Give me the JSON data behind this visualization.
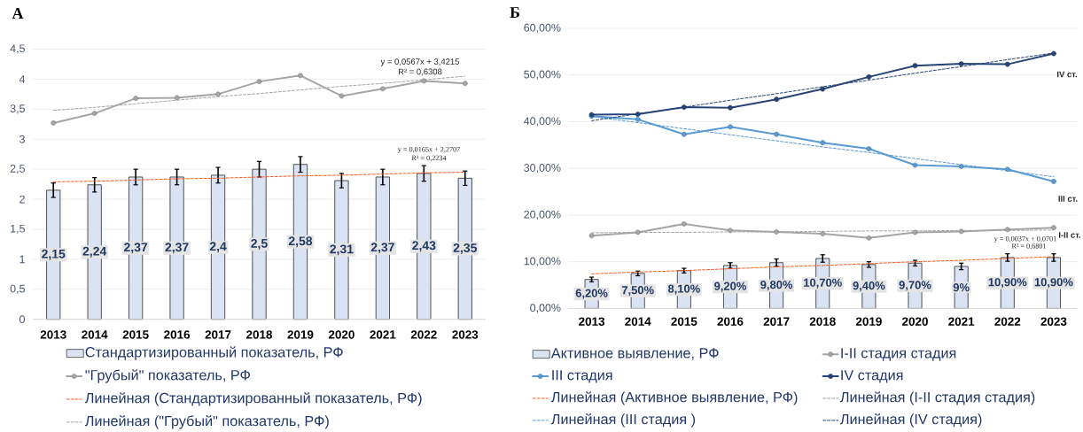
{
  "chart_data": [
    {
      "type": "bar",
      "title": "А",
      "x": [
        2013,
        2014,
        2015,
        2016,
        2017,
        2018,
        2019,
        2020,
        2021,
        2022,
        2023
      ],
      "xlim": [
        2012.5,
        2023.5
      ],
      "xticks": [
        2013,
        2014,
        2015,
        2016,
        2017,
        2018,
        2019,
        2020,
        2021,
        2022,
        2023
      ],
      "ylim": [
        0,
        4.5
      ],
      "yticks": [
        0,
        {
          "value": 0.5,
          "label": "0,5"
        },
        1,
        {
          "value": 1.5,
          "label": "1,5"
        },
        2,
        {
          "value": 2.5,
          "label": "2,5"
        },
        3,
        {
          "value": 3.5,
          "label": "3,5"
        },
        4,
        {
          "value": 4.5,
          "label": "4,5"
        }
      ],
      "grid": "y",
      "legend": "bottom",
      "series": [
        {
          "name": "Стандартизированный показатель, РФ",
          "color": "#dae3f3",
          "values": [
            2.15,
            2.24,
            2.37,
            2.37,
            2.4,
            2.5,
            2.58,
            2.31,
            2.37,
            2.43,
            2.35
          ],
          "errors": [
            0.12,
            0.12,
            0.13,
            0.13,
            0.13,
            0.13,
            0.13,
            0.12,
            0.13,
            0.13,
            0.12
          ],
          "value_labels": [
            "2,15",
            "2,24",
            "2,37",
            "2,37",
            "2,4",
            "2,5",
            "2,58",
            "2,31",
            "2,37",
            "2,43",
            "2,35"
          ]
        },
        {
          "name": "\"Грубый\" показатель, РФ",
          "type": "line",
          "color": "#a5a5a5",
          "marker": "circle",
          "line_style": "solid",
          "values": [
            3.27,
            3.43,
            3.68,
            3.69,
            3.75,
            3.96,
            4.06,
            3.72,
            3.84,
            3.97,
            3.93
          ]
        },
        {
          "name": "Линейная (Стандартизированный показатель, РФ)",
          "type": "line",
          "color": "#ff5b1f",
          "marker": "none",
          "line_style": "dashed",
          "values": [
            2.29,
            2.3,
            2.32,
            2.34,
            2.35,
            2.37,
            2.39,
            2.4,
            2.42,
            2.44,
            2.45
          ]
        },
        {
          "name": "Линейная (\"Грубый\" показатель, РФ)",
          "type": "line",
          "color": "#a5a5a5",
          "marker": "none",
          "line_style": "dashed",
          "values": [
            3.48,
            3.53,
            3.59,
            3.65,
            3.71,
            3.76,
            3.82,
            3.88,
            3.93,
            3.99,
            4.05
          ]
        }
      ],
      "annotations": [
        "y = 0,0567x + 3,4215",
        "R² = 0,6308",
        "y = 0,0165x + 2,2707",
        "R² = 0,2234"
      ]
    },
    {
      "type": "bar",
      "title": "Б",
      "x": [
        2013,
        2014,
        2015,
        2016,
        2017,
        2018,
        2019,
        2020,
        2021,
        2022,
        2023
      ],
      "xlim": [
        2012.5,
        2023.5
      ],
      "xticks": [
        2013,
        2014,
        2015,
        2016,
        2017,
        2018,
        2019,
        2020,
        2021,
        2022,
        2023
      ],
      "ylim": [
        0,
        60
      ],
      "yticks": [
        {
          "value": 0,
          "label": "0,00%"
        },
        {
          "value": 10,
          "label": "10,00%"
        },
        {
          "value": 20,
          "label": "20,00%"
        },
        {
          "value": 30,
          "label": "30,00%"
        },
        {
          "value": 40,
          "label": "40,00%"
        },
        {
          "value": 50,
          "label": "50,00%"
        },
        {
          "value": 60,
          "label": "60,00%"
        }
      ],
      "grid": "y",
      "legend": "bottom",
      "series": [
        {
          "name": "Активное выявление, РФ",
          "color": "#dae3f3",
          "values": [
            6.2,
            7.5,
            8.1,
            9.2,
            9.8,
            10.7,
            9.4,
            9.7,
            9,
            10.9,
            10.9
          ],
          "errors": [
            0.5,
            0.5,
            0.5,
            0.6,
            0.8,
            0.8,
            0.6,
            0.6,
            0.7,
            0.8,
            0.8
          ],
          "value_labels": [
            "6,20%",
            "7,50%",
            "8,10%",
            "9,20%",
            "9,80%",
            "10,70%",
            "9,40%",
            "9,70%",
            "9%",
            "10,90%",
            "10,90%"
          ]
        },
        {
          "name": "I-II стадия стадия",
          "type": "line",
          "color": "#a5a5a5",
          "marker": "circle",
          "line_style": "solid",
          "values": [
            15.6,
            16.3,
            18.1,
            16.7,
            16.4,
            16.0,
            15.1,
            16.3,
            16.5,
            16.9,
            17.3
          ]
        },
        {
          "name": "III  стадия",
          "type": "line",
          "color": "#5b9bd5",
          "marker": "circle",
          "line_style": "solid",
          "values": [
            41.2,
            40.5,
            37.3,
            38.9,
            37.3,
            35.5,
            34.2,
            30.7,
            30.4,
            29.8,
            27.2
          ]
        },
        {
          "name": "IV стадия",
          "type": "line",
          "color": "#264478",
          "marker": "circle",
          "line_style": "solid",
          "values": [
            41.5,
            41.6,
            43.1,
            43.0,
            44.8,
            47.0,
            49.6,
            52.0,
            52.4,
            52.3,
            54.6
          ]
        },
        {
          "name": "Линейная (Активное выявление, РФ)",
          "type": "line",
          "color": "#ff5b1f",
          "marker": "none",
          "line_style": "dashed",
          "values": [
            7.4,
            7.8,
            8.1,
            8.5,
            8.9,
            9.2,
            9.6,
            10.0,
            10.3,
            10.7,
            11.1
          ]
        },
        {
          "name": "Линейная (I-II стадия стадия)",
          "type": "line",
          "color": "#a5a5a5",
          "marker": "none",
          "line_style": "dashed",
          "values": [
            16.2,
            16.3,
            16.3,
            16.4,
            16.4,
            16.5,
            16.6,
            16.6,
            16.7,
            16.7,
            16.8
          ]
        },
        {
          "name": "Линейная (III  стадия )",
          "type": "line",
          "color": "#5b9bd5",
          "marker": "none",
          "line_style": "dashed",
          "values": [
            41.1,
            39.8,
            38.5,
            37.2,
            35.9,
            34.6,
            33.4,
            32.1,
            30.8,
            29.5,
            28.2
          ]
        },
        {
          "name": "Линейная (IV стадия)",
          "type": "line",
          "color": "#264478",
          "marker": "none",
          "line_style": "dashed",
          "values": [
            40.2,
            41.7,
            43.1,
            44.6,
            46.0,
            47.5,
            48.9,
            50.4,
            51.8,
            53.3,
            54.7
          ]
        }
      ],
      "annotations": [
        "y = 0,0037x + 0,0701",
        "R² = 0,6801",
        "IV ст.",
        "III ст.",
        "I-II ст."
      ]
    }
  ]
}
